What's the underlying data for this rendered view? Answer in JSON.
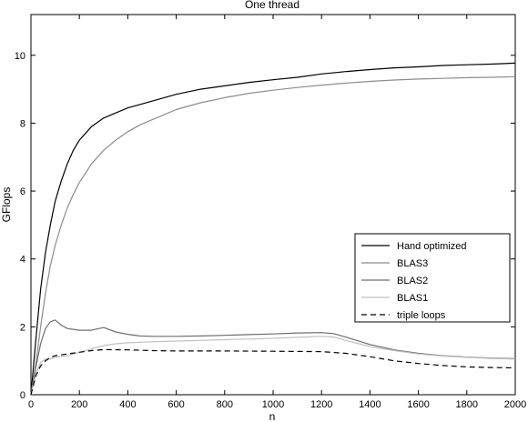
{
  "chart_data": {
    "type": "line",
    "title": "One thread",
    "xlabel": "n",
    "ylabel": "GFlops",
    "xlim": [
      0,
      2000
    ],
    "ylim": [
      0,
      11.2
    ],
    "xticks": [
      0,
      200,
      400,
      600,
      800,
      1000,
      1200,
      1400,
      1600,
      1800,
      2000
    ],
    "yticks": [
      0,
      2,
      4,
      6,
      8,
      10
    ],
    "grid": false,
    "legend_position": "lower-right",
    "series": [
      {
        "name": "Hand optimized",
        "color": "#000000",
        "dash": "solid",
        "points": [
          [
            0,
            0
          ],
          [
            20,
            1.6
          ],
          [
            40,
            3.1
          ],
          [
            60,
            4.2
          ],
          [
            80,
            5.0
          ],
          [
            100,
            5.7
          ],
          [
            125,
            6.3
          ],
          [
            150,
            6.8
          ],
          [
            175,
            7.2
          ],
          [
            200,
            7.5
          ],
          [
            250,
            7.9
          ],
          [
            300,
            8.15
          ],
          [
            350,
            8.3
          ],
          [
            400,
            8.45
          ],
          [
            450,
            8.55
          ],
          [
            500,
            8.65
          ],
          [
            600,
            8.85
          ],
          [
            700,
            9.0
          ],
          [
            800,
            9.1
          ],
          [
            900,
            9.2
          ],
          [
            1000,
            9.28
          ],
          [
            1100,
            9.35
          ],
          [
            1200,
            9.45
          ],
          [
            1300,
            9.52
          ],
          [
            1400,
            9.58
          ],
          [
            1500,
            9.63
          ],
          [
            1600,
            9.66
          ],
          [
            1700,
            9.7
          ],
          [
            1800,
            9.72
          ],
          [
            1900,
            9.74
          ],
          [
            2000,
            9.77
          ]
        ]
      },
      {
        "name": "BLAS3",
        "color": "#8c8c8c",
        "dash": "solid",
        "points": [
          [
            0,
            0
          ],
          [
            20,
            0.9
          ],
          [
            40,
            2.0
          ],
          [
            60,
            3.0
          ],
          [
            80,
            3.8
          ],
          [
            100,
            4.4
          ],
          [
            125,
            5.0
          ],
          [
            150,
            5.5
          ],
          [
            175,
            5.9
          ],
          [
            200,
            6.25
          ],
          [
            250,
            6.8
          ],
          [
            300,
            7.2
          ],
          [
            350,
            7.5
          ],
          [
            400,
            7.75
          ],
          [
            450,
            7.95
          ],
          [
            500,
            8.1
          ],
          [
            600,
            8.4
          ],
          [
            700,
            8.6
          ],
          [
            800,
            8.75
          ],
          [
            900,
            8.88
          ],
          [
            1000,
            8.97
          ],
          [
            1100,
            9.05
          ],
          [
            1200,
            9.12
          ],
          [
            1300,
            9.18
          ],
          [
            1400,
            9.23
          ],
          [
            1500,
            9.27
          ],
          [
            1600,
            9.3
          ],
          [
            1700,
            9.32
          ],
          [
            1800,
            9.34
          ],
          [
            1900,
            9.35
          ],
          [
            2000,
            9.37
          ]
        ]
      },
      {
        "name": "BLAS2",
        "color": "#6e6e6e",
        "dash": "solid",
        "points": [
          [
            0,
            0
          ],
          [
            20,
            0.8
          ],
          [
            40,
            1.5
          ],
          [
            60,
            1.95
          ],
          [
            80,
            2.15
          ],
          [
            100,
            2.2
          ],
          [
            125,
            2.05
          ],
          [
            150,
            1.95
          ],
          [
            200,
            1.9
          ],
          [
            250,
            1.9
          ],
          [
            300,
            1.98
          ],
          [
            350,
            1.85
          ],
          [
            400,
            1.78
          ],
          [
            450,
            1.73
          ],
          [
            500,
            1.72
          ],
          [
            600,
            1.72
          ],
          [
            700,
            1.73
          ],
          [
            800,
            1.75
          ],
          [
            900,
            1.77
          ],
          [
            1000,
            1.79
          ],
          [
            1100,
            1.82
          ],
          [
            1200,
            1.83
          ],
          [
            1250,
            1.8
          ],
          [
            1300,
            1.7
          ],
          [
            1400,
            1.48
          ],
          [
            1500,
            1.32
          ],
          [
            1600,
            1.22
          ],
          [
            1700,
            1.15
          ],
          [
            1800,
            1.11
          ],
          [
            1900,
            1.08
          ],
          [
            2000,
            1.06
          ]
        ]
      },
      {
        "name": "BLAS1",
        "color": "#c0c0c0",
        "dash": "solid",
        "points": [
          [
            0,
            0
          ],
          [
            20,
            0.6
          ],
          [
            40,
            0.95
          ],
          [
            60,
            1.05
          ],
          [
            80,
            1.05
          ],
          [
            100,
            1.1
          ],
          [
            150,
            1.15
          ],
          [
            200,
            1.25
          ],
          [
            250,
            1.35
          ],
          [
            300,
            1.45
          ],
          [
            350,
            1.5
          ],
          [
            400,
            1.53
          ],
          [
            500,
            1.56
          ],
          [
            600,
            1.58
          ],
          [
            700,
            1.6
          ],
          [
            800,
            1.62
          ],
          [
            900,
            1.64
          ],
          [
            1000,
            1.66
          ],
          [
            1100,
            1.69
          ],
          [
            1200,
            1.72
          ],
          [
            1250,
            1.7
          ],
          [
            1300,
            1.6
          ],
          [
            1400,
            1.42
          ],
          [
            1500,
            1.3
          ],
          [
            1600,
            1.2
          ],
          [
            1700,
            1.14
          ],
          [
            1800,
            1.1
          ],
          [
            1900,
            1.07
          ],
          [
            2000,
            1.05
          ]
        ]
      },
      {
        "name": "triple loops",
        "color": "#000000",
        "dash": "dashed",
        "points": [
          [
            0,
            0
          ],
          [
            20,
            0.55
          ],
          [
            40,
            0.85
          ],
          [
            60,
            1.0
          ],
          [
            80,
            1.1
          ],
          [
            100,
            1.15
          ],
          [
            150,
            1.2
          ],
          [
            200,
            1.25
          ],
          [
            250,
            1.3
          ],
          [
            300,
            1.33
          ],
          [
            400,
            1.32
          ],
          [
            500,
            1.3
          ],
          [
            600,
            1.29
          ],
          [
            800,
            1.29
          ],
          [
            1000,
            1.28
          ],
          [
            1200,
            1.27
          ],
          [
            1300,
            1.22
          ],
          [
            1400,
            1.12
          ],
          [
            1500,
            1.0
          ],
          [
            1600,
            0.92
          ],
          [
            1700,
            0.86
          ],
          [
            1800,
            0.82
          ],
          [
            1900,
            0.8
          ],
          [
            2000,
            0.79
          ]
        ]
      }
    ]
  }
}
